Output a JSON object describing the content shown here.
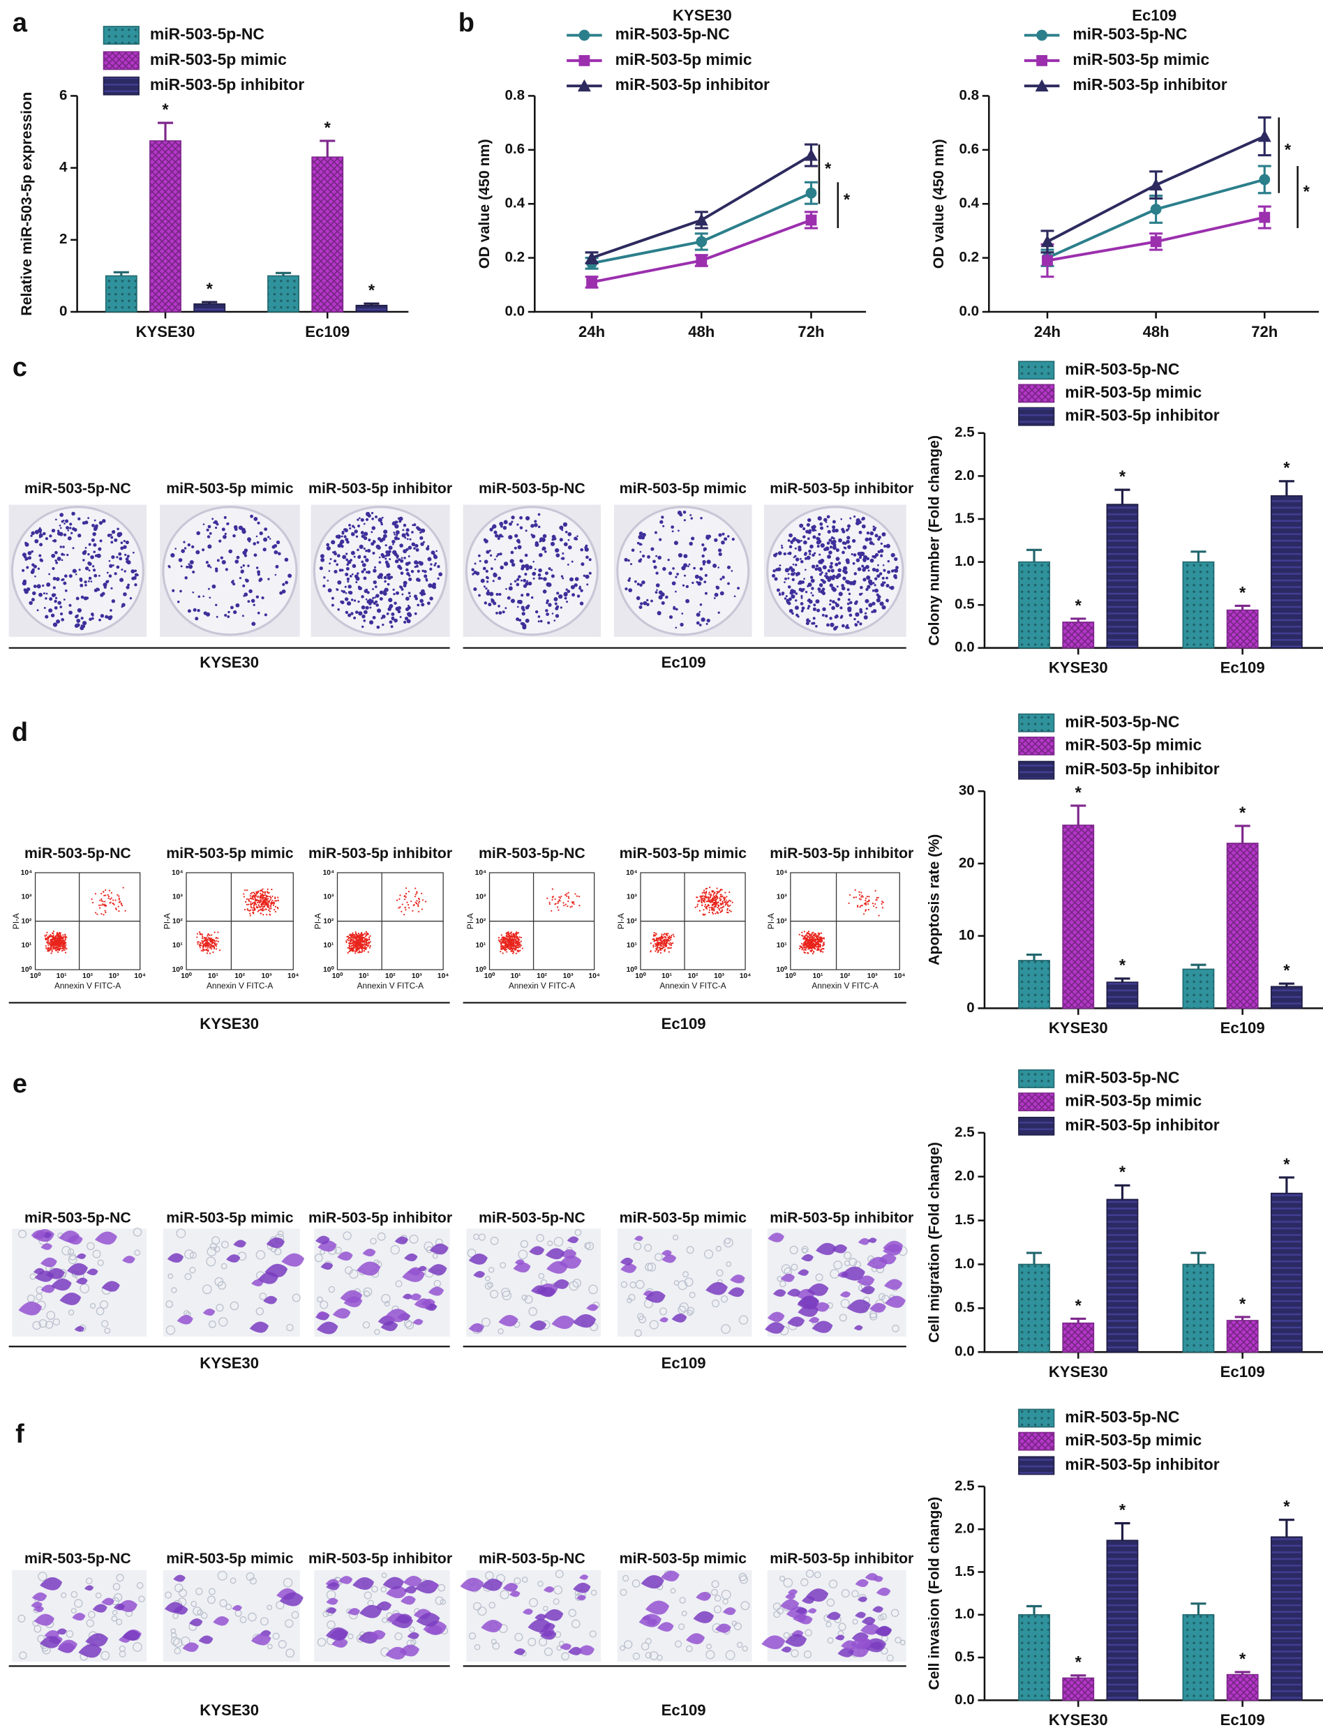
{
  "panel_labels": [
    "a",
    "b",
    "c",
    "d",
    "e",
    "f"
  ],
  "image_rows": [
    {
      "labels": [
        "miR-503-5p-NC",
        "miR-503-5p mimic",
        "miR-503-5p inhibitor",
        "miR-503-5p-NC",
        "miR-503-5p mimic",
        "miR-503-5p inhibitor"
      ],
      "groups": [
        "KYSE30",
        "Ec109"
      ]
    },
    {
      "labels": [
        "miR-503-5p-NC",
        "miR-503-5p mimic",
        "miR-503-5p inhibitor",
        "miR-503-5p-NC",
        "miR-503-5p mimic",
        "miR-503-5p inhibitor"
      ],
      "groups": [
        "KYSE30",
        "Ec109"
      ]
    },
    {
      "labels": [
        "miR-503-5p-NC",
        "miR-503-5p mimic",
        "miR-503-5p inhibitor",
        "miR-503-5p-NC",
        "miR-503-5p mimic",
        "miR-503-5p inhibitor"
      ],
      "groups": [
        "KYSE30",
        "Ec109"
      ]
    },
    {
      "labels": [
        "miR-503-5p-NC",
        "miR-503-5p mimic",
        "miR-503-5p inhibitor",
        "miR-503-5p-NC",
        "miR-503-5p mimic",
        "miR-503-5p inhibitor"
      ],
      "groups": [
        "KYSE30",
        "Ec109"
      ]
    }
  ],
  "flow_axes": {
    "x_label": "Annexin V FITC-A",
    "y_label": "PI-A",
    "ticks": [
      "10⁰",
      "10¹",
      "10²",
      "10³",
      "10⁴"
    ]
  },
  "chart_data": [
    {
      "type": "bar",
      "y_label": "Relative miR-503-5p expression",
      "categories": [
        "KYSE30",
        "Ec109"
      ],
      "ylim": [
        0,
        6
      ],
      "yticks": [
        0,
        2,
        4,
        6
      ],
      "series": [
        {
          "name": "miR-503-5p-NC",
          "color": "#2f929c",
          "pattern": "dots",
          "values": [
            1.0,
            1.0
          ],
          "errors": [
            0.1,
            0.08
          ],
          "annotations": [
            null,
            null
          ]
        },
        {
          "name": "miR-503-5p mimic",
          "color": "#b437c8",
          "pattern": "crosshatch",
          "values": [
            4.75,
            4.3
          ],
          "errors": [
            0.5,
            0.45
          ],
          "annotations": [
            "*",
            "*"
          ]
        },
        {
          "name": "miR-503-5p inhibitor",
          "color": "#2c2a63",
          "pattern": "stripes",
          "values": [
            0.22,
            0.18
          ],
          "errors": [
            0.05,
            0.05
          ],
          "annotations": [
            "*",
            "*"
          ]
        }
      ]
    },
    {
      "type": "line",
      "title": "KYSE30",
      "y_label": "OD value (450 nm)",
      "categories": [
        "24h",
        "48h",
        "72h"
      ],
      "ylim": [
        0,
        0.8
      ],
      "yticks": [
        {
          "value": 0,
          "label": "0.0"
        },
        0.2,
        0.4,
        0.6,
        0.8
      ],
      "annotations": [
        "*",
        "*"
      ],
      "series": [
        {
          "name": "miR-503-5p-NC",
          "color": "#2b7f8b",
          "marker": "circle",
          "values": [
            0.18,
            0.26,
            0.44
          ],
          "errors": [
            0.02,
            0.03,
            0.04
          ]
        },
        {
          "name": "miR-503-5p mimic",
          "color": "#9b2fae",
          "marker": "square",
          "values": [
            0.11,
            0.19,
            0.34
          ],
          "errors": [
            0.02,
            0.02,
            0.03
          ]
        },
        {
          "name": "miR-503-5p inhibitor",
          "color": "#2c2a5e",
          "marker": "triangle",
          "values": [
            0.2,
            0.34,
            0.58
          ],
          "errors": [
            0.02,
            0.03,
            0.04
          ]
        }
      ]
    },
    {
      "type": "line",
      "title": "Ec109",
      "y_label": "OD value (450 nm)",
      "categories": [
        "24h",
        "48h",
        "72h"
      ],
      "ylim": [
        0,
        0.8
      ],
      "yticks": [
        {
          "value": 0,
          "label": "0.0"
        },
        0.2,
        0.4,
        0.6,
        0.8
      ],
      "annotations": [
        "*",
        "*"
      ],
      "series": [
        {
          "name": "miR-503-5p-NC",
          "color": "#2b7f8b",
          "marker": "circle",
          "values": [
            0.2,
            0.38,
            0.49
          ],
          "errors": [
            0.03,
            0.05,
            0.05
          ]
        },
        {
          "name": "miR-503-5p mimic",
          "color": "#9b2fae",
          "marker": "square",
          "values": [
            0.19,
            0.26,
            0.35
          ],
          "errors": [
            0.06,
            0.03,
            0.04
          ]
        },
        {
          "name": "miR-503-5p inhibitor",
          "color": "#2c2a5e",
          "marker": "triangle",
          "values": [
            0.26,
            0.47,
            0.65
          ],
          "errors": [
            0.04,
            0.05,
            0.07
          ]
        }
      ]
    },
    {
      "type": "bar",
      "y_label": "Colony number (Fold change)",
      "categories": [
        "KYSE30",
        "Ec109"
      ],
      "ylim": [
        0,
        2.5
      ],
      "yticks": [
        {
          "value": 0,
          "label": "0.0"
        },
        0.5,
        {
          "value": 1,
          "label": "1.0"
        },
        1.5,
        {
          "value": 2,
          "label": "2.0"
        },
        2.5
      ],
      "series": [
        {
          "name": "miR-503-5p-NC",
          "color": "#2f929c",
          "pattern": "dots",
          "values": [
            1.0,
            1.0
          ],
          "errors": [
            0.14,
            0.12
          ],
          "annotations": [
            null,
            null
          ]
        },
        {
          "name": "miR-503-5p mimic",
          "color": "#b437c8",
          "pattern": "crosshatch",
          "values": [
            0.3,
            0.44
          ],
          "errors": [
            0.04,
            0.05
          ],
          "annotations": [
            "*",
            "*"
          ]
        },
        {
          "name": "miR-503-5p inhibitor",
          "color": "#2c2a63",
          "pattern": "stripes",
          "values": [
            1.67,
            1.77
          ],
          "errors": [
            0.17,
            0.17
          ],
          "annotations": [
            "*",
            "*"
          ]
        }
      ]
    },
    {
      "type": "bar",
      "y_label": "Apoptosis rate (%)",
      "categories": [
        "KYSE30",
        "Ec109"
      ],
      "ylim": [
        0,
        30
      ],
      "yticks": [
        0,
        10,
        20,
        30
      ],
      "series": [
        {
          "name": "miR-503-5p-NC",
          "color": "#2f929c",
          "pattern": "dots",
          "values": [
            6.6,
            5.4
          ],
          "errors": [
            0.8,
            0.6
          ],
          "annotations": [
            null,
            null
          ]
        },
        {
          "name": "miR-503-5p mimic",
          "color": "#b437c8",
          "pattern": "crosshatch",
          "values": [
            25.3,
            22.8
          ],
          "errors": [
            2.7,
            2.4
          ],
          "annotations": [
            "*",
            "*"
          ]
        },
        {
          "name": "miR-503-5p inhibitor",
          "color": "#2c2a63",
          "pattern": "stripes",
          "values": [
            3.6,
            3.0
          ],
          "errors": [
            0.5,
            0.4
          ],
          "annotations": [
            "*",
            "*"
          ]
        }
      ]
    },
    {
      "type": "bar",
      "y_label": "Cell migration (Fold change)",
      "categories": [
        "KYSE30",
        "Ec109"
      ],
      "ylim": [
        0,
        2.5
      ],
      "yticks": [
        {
          "value": 0,
          "label": "0.0"
        },
        0.5,
        {
          "value": 1,
          "label": "1.0"
        },
        1.5,
        {
          "value": 2,
          "label": "2.0"
        },
        2.5
      ],
      "series": [
        {
          "name": "miR-503-5p-NC",
          "color": "#2f929c",
          "pattern": "dots",
          "values": [
            1.0,
            1.0
          ],
          "errors": [
            0.13,
            0.13
          ],
          "annotations": [
            null,
            null
          ]
        },
        {
          "name": "miR-503-5p mimic",
          "color": "#b437c8",
          "pattern": "crosshatch",
          "values": [
            0.33,
            0.36
          ],
          "errors": [
            0.05,
            0.04
          ],
          "annotations": [
            "*",
            "*"
          ]
        },
        {
          "name": "miR-503-5p inhibitor",
          "color": "#2c2a63",
          "pattern": "stripes",
          "values": [
            1.74,
            1.81
          ],
          "errors": [
            0.16,
            0.18
          ],
          "annotations": [
            "*",
            "*"
          ]
        }
      ]
    },
    {
      "type": "bar",
      "y_label": "Cell invasion (Fold change)",
      "categories": [
        "KYSE30",
        "Ec109"
      ],
      "ylim": [
        0,
        2.5
      ],
      "yticks": [
        {
          "value": 0,
          "label": "0.0"
        },
        0.5,
        {
          "value": 1,
          "label": "1.0"
        },
        1.5,
        {
          "value": 2,
          "label": "2.0"
        },
        2.5
      ],
      "series": [
        {
          "name": "miR-503-5p-NC",
          "color": "#2f929c",
          "pattern": "dots",
          "values": [
            1.0,
            1.0
          ],
          "errors": [
            0.1,
            0.13
          ],
          "annotations": [
            null,
            null
          ]
        },
        {
          "name": "miR-503-5p mimic",
          "color": "#b437c8",
          "pattern": "crosshatch",
          "values": [
            0.26,
            0.3
          ],
          "errors": [
            0.03,
            0.03
          ],
          "annotations": [
            "*",
            "*"
          ]
        },
        {
          "name": "miR-503-5p inhibitor",
          "color": "#2c2a63",
          "pattern": "stripes",
          "values": [
            1.87,
            1.91
          ],
          "errors": [
            0.2,
            0.2
          ],
          "annotations": [
            "*",
            "*"
          ]
        }
      ]
    }
  ]
}
